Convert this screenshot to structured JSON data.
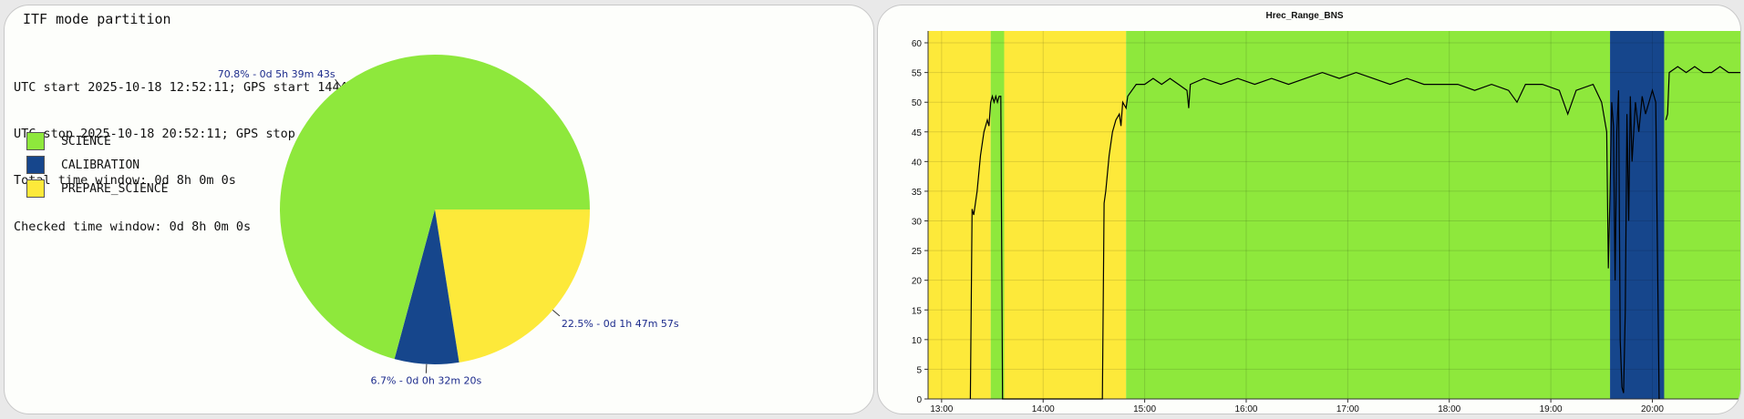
{
  "left_panel": {
    "title": "ITF mode partition",
    "info_lines": [
      "UTC start 2025-10-18 12:52:11; GPS start 1444827150;",
      "UTC stop 2025-10-18 20:52:11; GPS stop 1444855950;",
      "Total time window: 0d 8h 0m 0s",
      "Checked time window: 0d 8h 0m 0s"
    ]
  },
  "chart_data": [
    {
      "type": "pie",
      "title": "ITF mode partition",
      "slices": [
        {
          "name": "SCIENCE",
          "value": 70.8,
          "label": "70.8% - 0d 5h 39m 43s",
          "color": "#8ee83c"
        },
        {
          "name": "CALIBRATION",
          "value": 6.7,
          "label": "6.7% - 0d 0h 32m 20s",
          "color": "#16468c"
        },
        {
          "name": "PREPARE_SCIENCE",
          "value": 22.5,
          "label": "22.5% - 0d 1h 47m 57s",
          "color": "#fde93a"
        }
      ],
      "legend_position": "left"
    },
    {
      "type": "line",
      "title": "Hrec_Range_BNS",
      "xlabel": "",
      "ylabel": "",
      "x_range": [
        "12:52",
        "20:52"
      ],
      "ylim": [
        0,
        62
      ],
      "y_ticks": [
        0,
        5,
        10,
        15,
        20,
        25,
        30,
        35,
        40,
        45,
        50,
        55,
        60
      ],
      "x_ticks": [
        "13:00",
        "14:00",
        "15:00",
        "16:00",
        "17:00",
        "18:00",
        "19:00",
        "20:00"
      ],
      "grid": true,
      "background_bands": [
        {
          "start": "12:52",
          "end": "13:29",
          "mode": "PREPARE_SCIENCE",
          "color": "#fde93a"
        },
        {
          "start": "13:29",
          "end": "13:37",
          "mode": "SCIENCE",
          "color": "#8ee83c"
        },
        {
          "start": "13:37",
          "end": "14:49",
          "mode": "PREPARE_SCIENCE",
          "color": "#fde93a"
        },
        {
          "start": "14:49",
          "end": "19:35",
          "mode": "SCIENCE",
          "color": "#8ee83c"
        },
        {
          "start": "19:35",
          "end": "20:07",
          "mode": "CALIBRATION",
          "color": "#16468c"
        },
        {
          "start": "20:07",
          "end": "20:52",
          "mode": "SCIENCE",
          "color": "#8ee83c"
        }
      ],
      "series": [
        {
          "points": [
            [
              "12:52",
              null
            ],
            [
              "13:17",
              0
            ],
            [
              "13:18",
              32
            ],
            [
              "13:19",
              31
            ],
            [
              "13:21",
              35
            ],
            [
              "13:23",
              41
            ],
            [
              "13:25",
              45
            ],
            [
              "13:27",
              47
            ],
            [
              "13:28",
              46
            ],
            [
              "13:29",
              50
            ],
            [
              "13:30",
              51
            ],
            [
              "13:31",
              50
            ],
            [
              "13:32",
              51
            ],
            [
              "13:33",
              50
            ],
            [
              "13:34",
              51
            ],
            [
              "13:35",
              51
            ],
            [
              "13:36",
              0
            ],
            [
              "14:35",
              0
            ],
            [
              "14:36",
              33
            ],
            [
              "14:37",
              35
            ],
            [
              "14:39",
              41
            ],
            [
              "14:41",
              45
            ],
            [
              "14:43",
              47
            ],
            [
              "14:45",
              48
            ],
            [
              "14:46",
              46
            ],
            [
              "14:47",
              50
            ],
            [
              "14:49",
              49
            ],
            [
              "14:50",
              51
            ],
            [
              "14:55",
              53
            ],
            [
              "15:00",
              53
            ],
            [
              "15:05",
              54
            ],
            [
              "15:10",
              53
            ],
            [
              "15:15",
              54
            ],
            [
              "15:20",
              53
            ],
            [
              "15:25",
              52
            ],
            [
              "15:26",
              49
            ],
            [
              "15:27",
              53
            ],
            [
              "15:35",
              54
            ],
            [
              "15:45",
              53
            ],
            [
              "15:55",
              54
            ],
            [
              "16:05",
              53
            ],
            [
              "16:15",
              54
            ],
            [
              "16:25",
              53
            ],
            [
              "16:35",
              54
            ],
            [
              "16:45",
              55
            ],
            [
              "16:55",
              54
            ],
            [
              "17:05",
              55
            ],
            [
              "17:15",
              54
            ],
            [
              "17:25",
              53
            ],
            [
              "17:35",
              54
            ],
            [
              "17:45",
              53
            ],
            [
              "17:55",
              53
            ],
            [
              "18:05",
              53
            ],
            [
              "18:15",
              52
            ],
            [
              "18:25",
              53
            ],
            [
              "18:35",
              52
            ],
            [
              "18:40",
              50
            ],
            [
              "18:45",
              53
            ],
            [
              "18:55",
              53
            ],
            [
              "19:05",
              52
            ],
            [
              "19:10",
              48
            ],
            [
              "19:15",
              52
            ],
            [
              "19:25",
              53
            ],
            [
              "19:30",
              50
            ],
            [
              "19:33",
              45
            ],
            [
              "19:34",
              22
            ],
            [
              "19:35",
              35
            ],
            [
              "19:36",
              50
            ],
            [
              "19:37",
              46
            ],
            [
              "19:38",
              20
            ],
            [
              "19:39",
              45
            ],
            [
              "19:40",
              52
            ],
            [
              "19:41",
              10
            ],
            [
              "19:42",
              2
            ],
            [
              "19:43",
              1
            ],
            [
              "19:44",
              15
            ],
            [
              "19:45",
              48
            ],
            [
              "19:46",
              30
            ],
            [
              "19:47",
              51
            ],
            [
              "19:48",
              40
            ],
            [
              "19:50",
              50
            ],
            [
              "19:52",
              45
            ],
            [
              "19:54",
              51
            ],
            [
              "19:56",
              48
            ],
            [
              "19:58",
              50
            ],
            [
              "20:00",
              52
            ],
            [
              "20:02",
              50
            ],
            [
              "20:04",
              0
            ],
            [
              "20:08",
              null
            ],
            [
              "20:08",
              47
            ],
            [
              "20:09",
              48
            ],
            [
              "20:10",
              55
            ],
            [
              "20:15",
              56
            ],
            [
              "20:20",
              55
            ],
            [
              "20:25",
              56
            ],
            [
              "20:30",
              55
            ],
            [
              "20:35",
              55
            ],
            [
              "20:40",
              56
            ],
            [
              "20:45",
              55
            ],
            [
              "20:52",
              55
            ]
          ]
        }
      ]
    }
  ]
}
